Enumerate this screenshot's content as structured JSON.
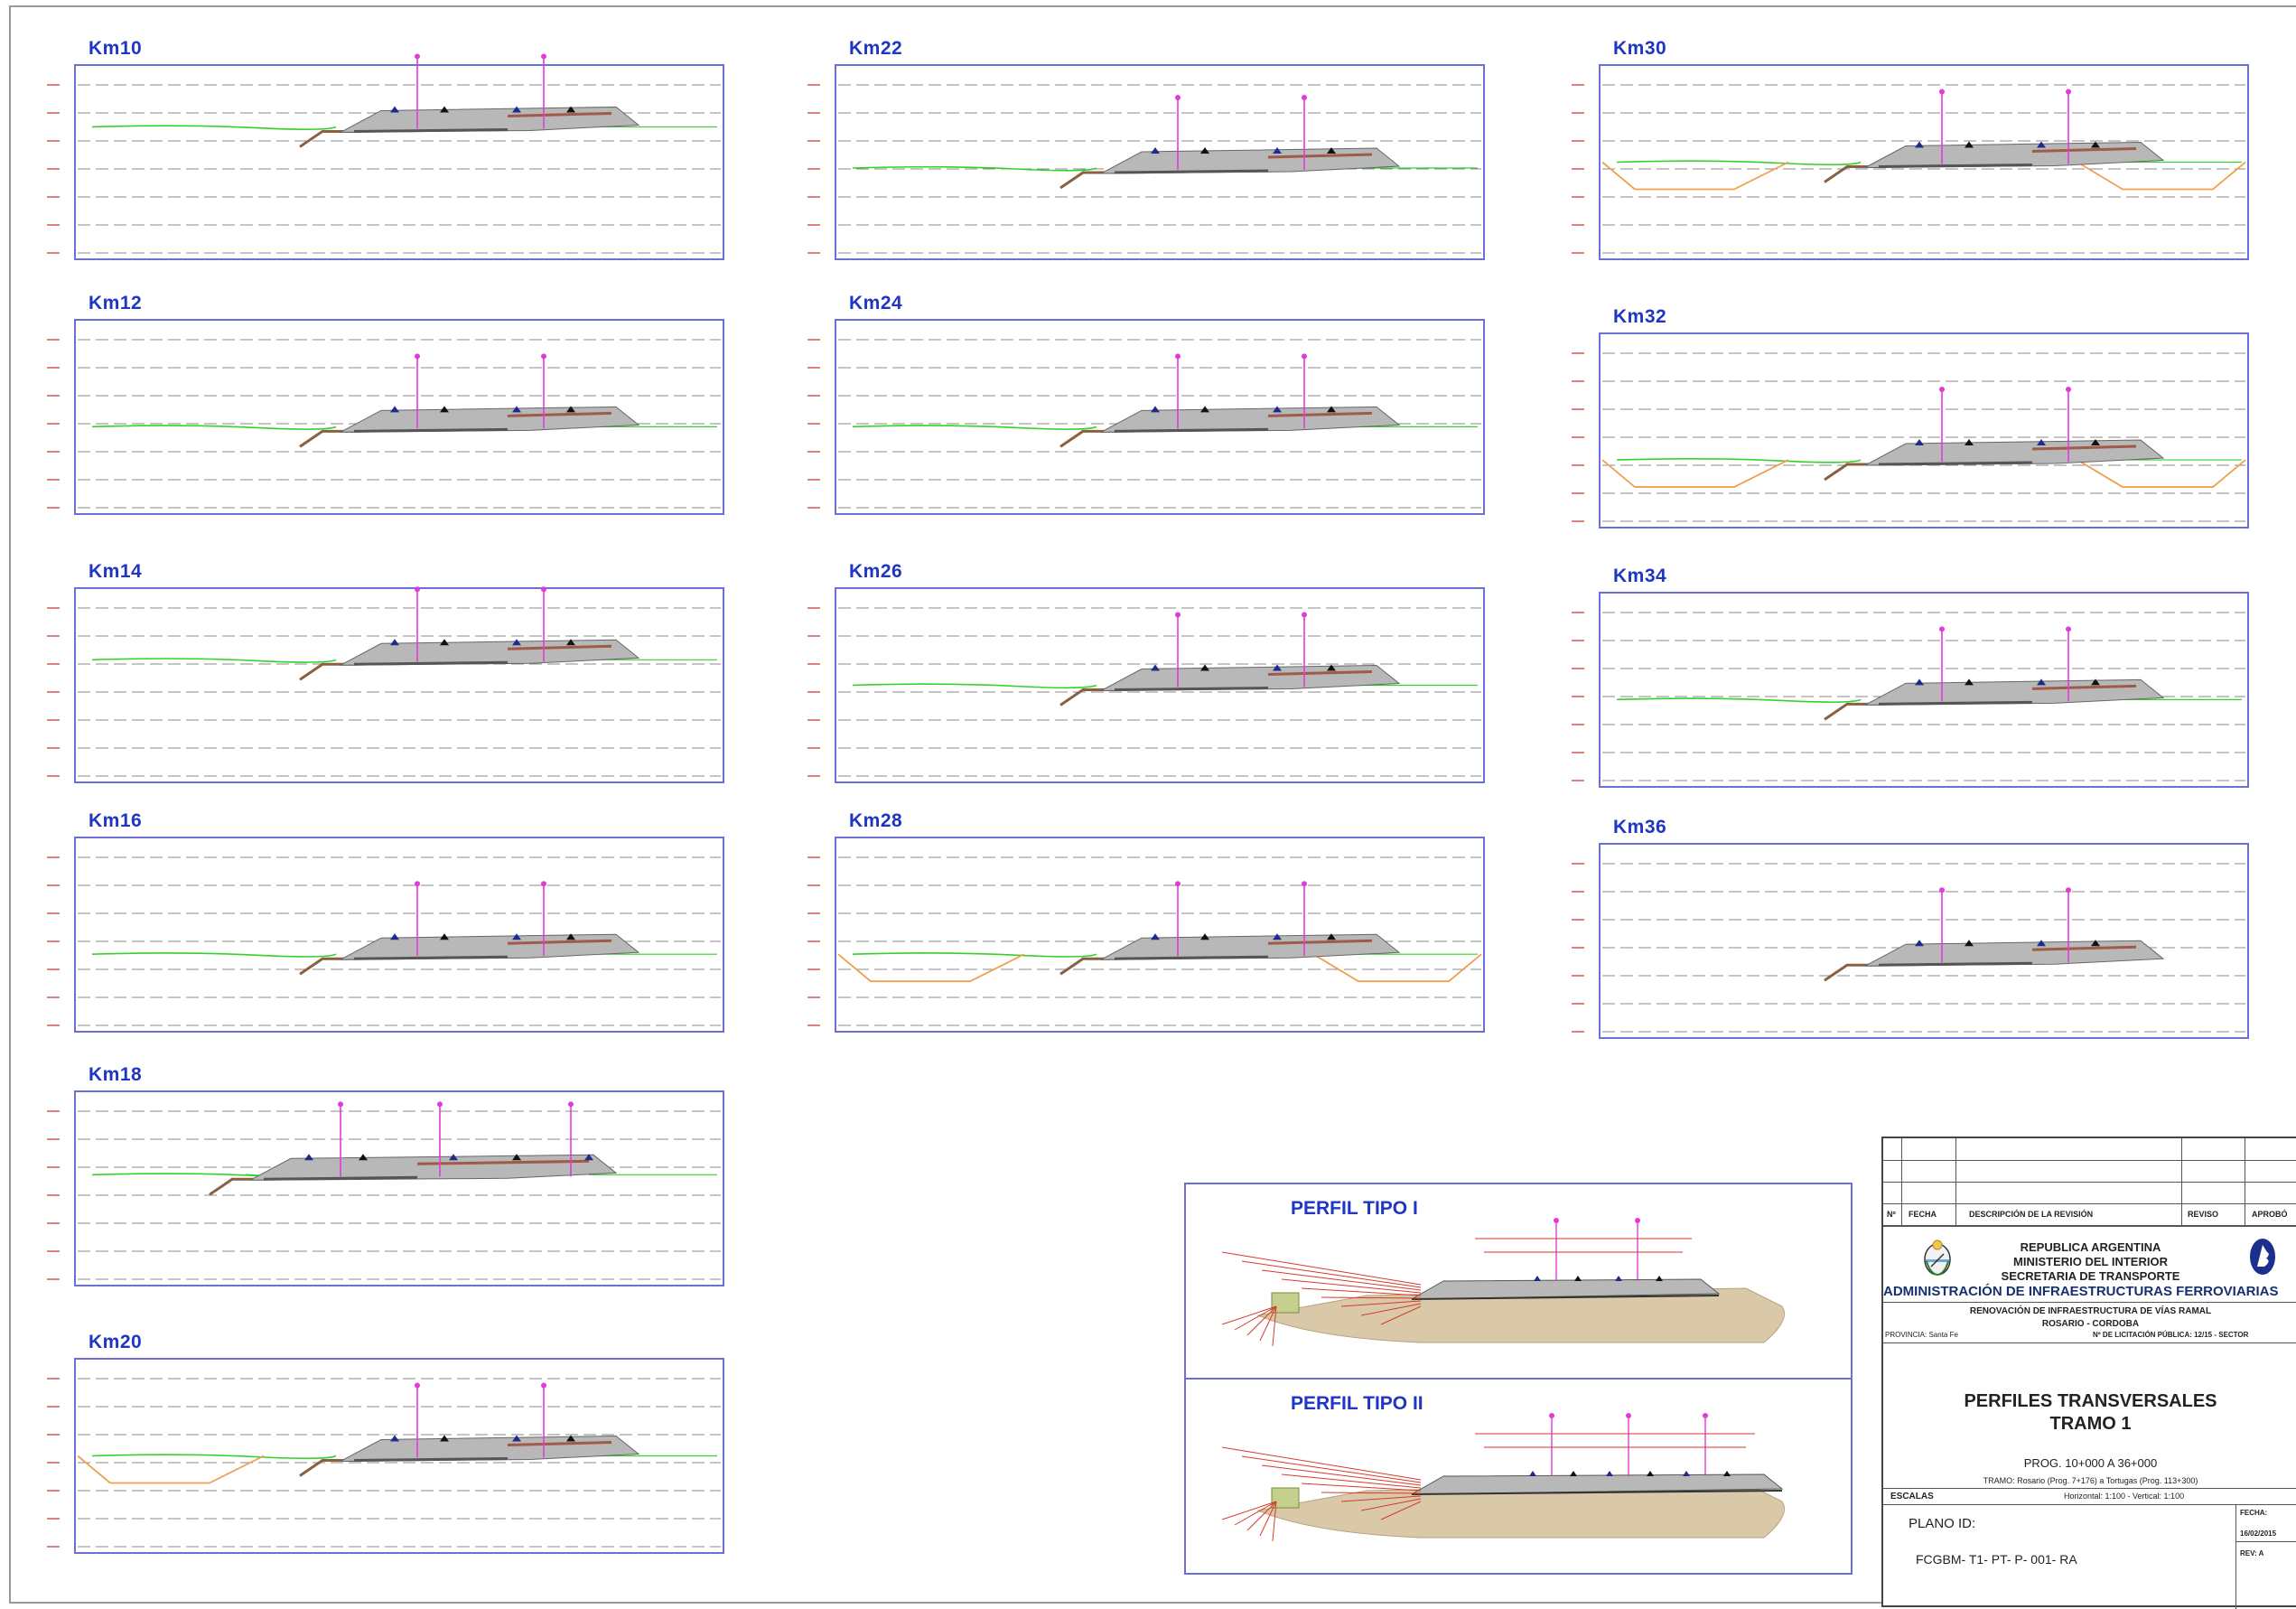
{
  "panels": [
    {
      "label": "Km10"
    },
    {
      "label": "Km12"
    },
    {
      "label": "Km14"
    },
    {
      "label": "Km16"
    },
    {
      "label": "Km18"
    },
    {
      "label": "Km20"
    },
    {
      "label": "Km22"
    },
    {
      "label": "Km24"
    },
    {
      "label": "Km26"
    },
    {
      "label": "Km28"
    },
    {
      "label": "Km30"
    },
    {
      "label": "Km32"
    },
    {
      "label": "Km34"
    },
    {
      "label": "Km36"
    }
  ],
  "perfil_tipo": [
    {
      "label": "PERFIL TIPO I"
    },
    {
      "label": "PERFIL TIPO II"
    }
  ],
  "title_block": {
    "rev_header": {
      "num": "Nº",
      "fecha": "FECHA",
      "descripcion": "DESCRIPCIÓN DE LA REVISIÓN",
      "reviso": "REVISO",
      "aprobo": "APROBÓ"
    },
    "org_line1": "REPUBLICA ARGENTINA",
    "org_line2": "MINISTERIO DEL INTERIOR",
    "org_line3": "SECRETARIA DE TRANSPORTE",
    "org_line4": "ADMINISTRACIÓN DE INFRAESTRUCTURAS FERROVIARIAS",
    "project_line1": "RENOVACIÓN DE INFRAESTRUCTURA DE VÍAS RAMAL",
    "project_line2": "ROSARIO - CORDOBA",
    "provincia": "PROVINCIA: Santa Fe",
    "licitacion": "Nº DE LICITACIÓN PÚBLICA: 12/15 - SECTOR",
    "sheet_title1": "PERFILES TRANSVERSALES",
    "sheet_title2": "TRAMO 1",
    "prog": "PROG. 10+000 A 36+000",
    "tramo": "TRAMO: Rosario (Prog. 7+176) a Tortugas (Prog. 113+300)",
    "escalas_label": "ESCALAS",
    "escalas_value": "Horizontal: 1:100 - Vertical: 1:100",
    "plano_label": "PLANO ID:",
    "plano_value": "FCGBM- T1- PT- P- 001- RA",
    "fecha_label": "FECHA:",
    "fecha_value": "16/02/2015",
    "rev_label": "REV: A"
  },
  "colors": {
    "panel_border": "#6b6fd6",
    "label": "#1f35c4",
    "ground_line": "#34d12a",
    "ditch_line": "#f0a050",
    "embankment_fill": "#b8b8b8",
    "subgrade": "#8a6040",
    "post": "#e23bd8",
    "ballast_soil": "#d9c9a8",
    "dim_line": "#d63a2a"
  }
}
